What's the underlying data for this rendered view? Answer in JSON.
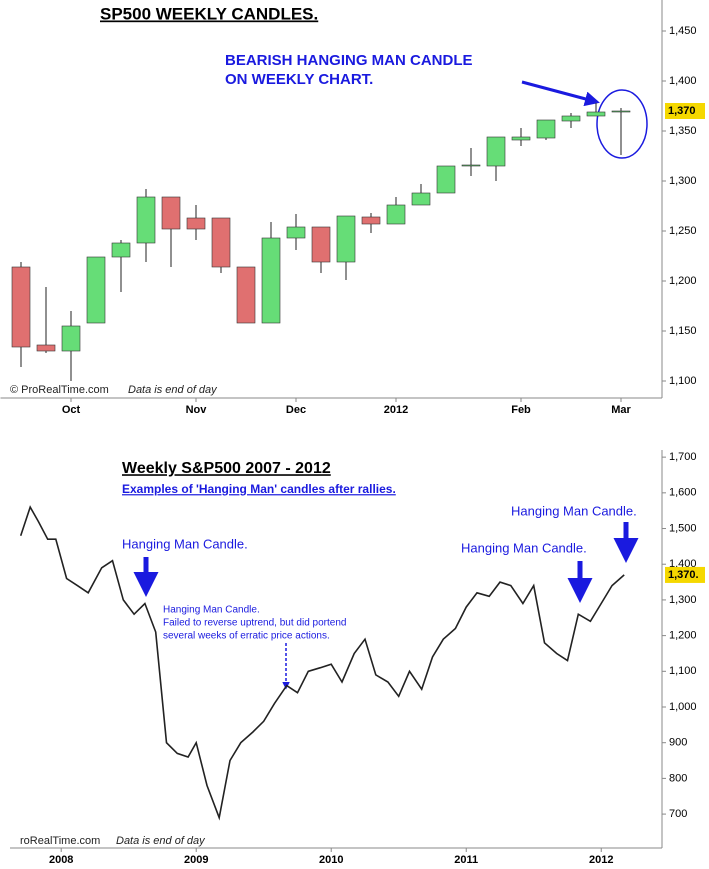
{
  "chart_data": [
    {
      "type": "candlestick",
      "title": "SP500 WEEKLY CANDLES.",
      "annotations": [
        "BEARISH HANGING MAN CANDLE",
        "ON WEEKLY CHART.",
        "© ProRealTime.com",
        "Data is end of day"
      ],
      "categories": [
        null,
        null,
        "Oct",
        null,
        null,
        null,
        null,
        "Nov",
        null,
        null,
        null,
        "Dec",
        null,
        null,
        null,
        "2012",
        null,
        null,
        null,
        null,
        "Feb",
        null,
        null,
        null,
        "Mar"
      ],
      "open": [
        1214,
        1136,
        1130,
        1158,
        1224,
        1238,
        1284,
        1263,
        1263,
        1214,
        1158,
        1243,
        1254,
        1219,
        1264,
        1257,
        1276,
        1288,
        1315,
        1315,
        1341,
        1343,
        1360,
        1365,
        1369
      ],
      "high": [
        1219,
        1194,
        1170,
        1224,
        1241,
        1292,
        1284,
        1276,
        1263,
        1214,
        1259,
        1267,
        1254,
        1265,
        1268,
        1284,
        1297,
        1315,
        1333,
        1344,
        1353,
        1361,
        1368,
        1378,
        1373
      ],
      "low": [
        1114,
        1128,
        1100,
        1158,
        1189,
        1219,
        1214,
        1241,
        1208,
        1158,
        1158,
        1231,
        1208,
        1201,
        1248,
        1257,
        1276,
        1288,
        1305,
        1300,
        1335,
        1341,
        1353,
        1365,
        1326
      ],
      "close": [
        1134,
        1130,
        1155,
        1224,
        1238,
        1284,
        1252,
        1252,
        1214,
        1158,
        1243,
        1254,
        1219,
        1265,
        1257,
        1276,
        1288,
        1315,
        1316,
        1344,
        1344,
        1361,
        1365,
        1369,
        1370
      ],
      "up_color": "#66dd77",
      "down_color": "#e07070",
      "ylim": [
        1083,
        1481
      ],
      "yticks": [
        {
          "value": 1100,
          "label": "1,100"
        },
        {
          "value": 1150,
          "label": "1,150"
        },
        {
          "value": 1200,
          "label": "1,200"
        },
        {
          "value": 1250,
          "label": "1,250"
        },
        {
          "value": 1300,
          "label": "1,300"
        },
        {
          "value": 1350,
          "label": "1,350"
        },
        {
          "value": 1400,
          "label": "1,400"
        },
        {
          "value": 1450,
          "label": "1,450"
        }
      ],
      "last_label": {
        "value": 1370,
        "label": "1,370"
      }
    },
    {
      "type": "line",
      "title": "Weekly S&P500 2007 - 2012",
      "subtitle": "Examples of 'Hanging Man' candles after rallies.",
      "annotations": [
        "Hanging Man Candle.",
        "Hanging Man Candle.",
        "Hanging Man Candle.",
        "Hanging Man Candle.",
        "Failed to reverse uptrend, but did portend",
        "several weeks of erratic price actions.",
        "roRealTime.com",
        "Data is end of day"
      ],
      "x": [
        2007.7,
        2007.77,
        2007.83,
        2007.9,
        2007.96,
        2008.04,
        2008.12,
        2008.2,
        2008.3,
        2008.38,
        2008.46,
        2008.54,
        2008.62,
        2008.7,
        2008.78,
        2008.86,
        2008.94,
        2009.0,
        2009.08,
        2009.17,
        2009.25,
        2009.33,
        2009.42,
        2009.5,
        2009.58,
        2009.67,
        2009.75,
        2009.83,
        2009.92,
        2010.0,
        2010.08,
        2010.17,
        2010.25,
        2010.33,
        2010.42,
        2010.5,
        2010.58,
        2010.67,
        2010.75,
        2010.83,
        2010.92,
        2011.0,
        2011.08,
        2011.17,
        2011.25,
        2011.33,
        2011.42,
        2011.5,
        2011.58,
        2011.67,
        2011.75,
        2011.83,
        2011.92,
        2012.0,
        2012.08,
        2012.17
      ],
      "values": [
        1480,
        1560,
        1520,
        1470,
        1470,
        1360,
        1340,
        1320,
        1390,
        1410,
        1300,
        1260,
        1290,
        1210,
        900,
        870,
        860,
        900,
        780,
        690,
        850,
        900,
        930,
        960,
        1010,
        1060,
        1040,
        1100,
        1110,
        1120,
        1070,
        1150,
        1190,
        1090,
        1070,
        1030,
        1100,
        1050,
        1140,
        1190,
        1220,
        1280,
        1320,
        1310,
        1350,
        1340,
        1290,
        1340,
        1180,
        1150,
        1130,
        1260,
        1240,
        1290,
        1340,
        1370
      ],
      "color": "#222222",
      "xlim": [
        2007.68,
        2012.45
      ],
      "xticks": [
        2008,
        2009,
        2010,
        2011,
        2012
      ],
      "ylim": [
        605,
        1720
      ],
      "yticks": [
        700,
        800,
        900,
        {
          "value": 1000,
          "label": "1,000"
        },
        {
          "value": 1100,
          "label": "1,100"
        },
        {
          "value": 1200,
          "label": "1,200"
        },
        {
          "value": 1300,
          "label": "1,300"
        },
        {
          "value": 1400,
          "label": "1,400"
        },
        {
          "value": 1500,
          "label": "1,500"
        },
        {
          "value": 1600,
          "label": "1,600"
        },
        {
          "value": 1700,
          "label": "1,700"
        }
      ],
      "last_label": {
        "value": 1370,
        "label": "1,370."
      }
    }
  ]
}
